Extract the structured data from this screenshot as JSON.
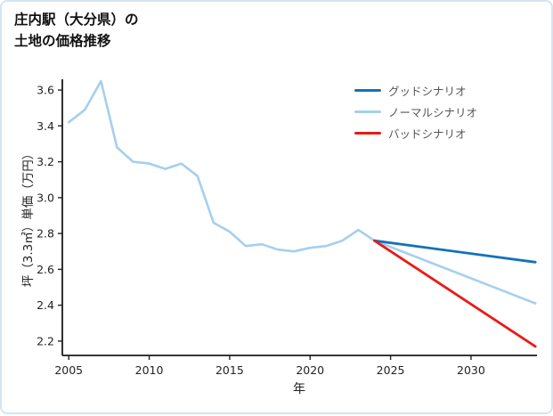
{
  "page": {
    "title_line1": "庄内駅（大分県）の",
    "title_line2": "土地の価格推移"
  },
  "chart_data": {
    "type": "line",
    "title": "庄内駅（大分県）の土地の価格推移",
    "xlabel": "年",
    "ylabel": "坪（3.3㎡）単価（万円）",
    "xlim": [
      2004.6,
      2034.1
    ],
    "ylim": [
      2.12,
      3.66
    ],
    "xticks": [
      2005,
      2010,
      2015,
      2020,
      2025,
      2030
    ],
    "yticks": [
      2.2,
      2.4,
      2.6,
      2.8,
      3.0,
      3.2,
      3.4,
      3.6
    ],
    "grid": false,
    "legend_position": "upper right",
    "legend": [
      {
        "label": "グッドシナリオ",
        "color": "#1273b9"
      },
      {
        "label": "ノーマルシナリオ",
        "color": "#a6cfee"
      },
      {
        "label": "バッドシナリオ",
        "color": "#ea1a17"
      }
    ],
    "series": [
      {
        "id": "history-normal",
        "name": "ノーマルシナリオ",
        "color": "#a6cfee",
        "width": 2.6,
        "x": [
          2005,
          2006,
          2007,
          2008,
          2009,
          2010,
          2011,
          2012,
          2013,
          2014,
          2015,
          2016,
          2017,
          2018,
          2019,
          2020,
          2021,
          2022,
          2023,
          2024
        ],
        "y": [
          3.42,
          3.49,
          3.65,
          3.28,
          3.2,
          3.19,
          3.16,
          3.19,
          3.12,
          2.86,
          2.81,
          2.73,
          2.74,
          2.71,
          2.7,
          2.72,
          2.73,
          2.76,
          2.82,
          2.76
        ]
      },
      {
        "id": "normal-forecast",
        "name": "ノーマルシナリオ",
        "color": "#a6cfee",
        "width": 2.6,
        "x": [
          2024,
          2034
        ],
        "y": [
          2.76,
          2.41
        ]
      },
      {
        "id": "good-scenario",
        "name": "グッドシナリオ",
        "color": "#1273b9",
        "width": 2.8,
        "x": [
          2024,
          2034
        ],
        "y": [
          2.76,
          2.64
        ]
      },
      {
        "id": "bad-scenario",
        "name": "バッドシナリオ",
        "color": "#ea1a17",
        "width": 2.8,
        "x": [
          2024,
          2034
        ],
        "y": [
          2.76,
          2.17
        ]
      }
    ]
  }
}
